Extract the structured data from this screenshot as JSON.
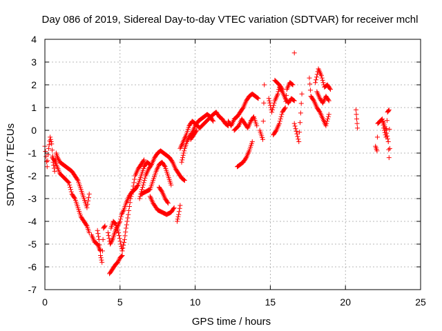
{
  "chart_data": {
    "type": "scatter",
    "title": "Day 086 of 2019, Sidereal Day-to-day VTEC variation (SDTVAR) for receiver mchl",
    "xlabel": "GPS time / hours",
    "ylabel": "SDTVAR / TECUs",
    "xlim": [
      0,
      25
    ],
    "ylim": [
      -7,
      4
    ],
    "x_ticks": [
      0,
      5,
      10,
      15,
      20,
      25
    ],
    "y_ticks": [
      -7,
      -6,
      -5,
      -4,
      -3,
      -2,
      -1,
      0,
      1,
      2,
      3,
      4
    ],
    "grid": true,
    "legend": "none",
    "marker": "plus",
    "colors": {
      "points": "#ff0000",
      "grid": "#a0a0a0",
      "axes": "#000000"
    },
    "segments": [
      [
        [
          0.0,
          -0.7
        ],
        [
          0.15,
          -1.6
        ],
        [
          0.25,
          -0.8
        ],
        [
          0.35,
          -0.3
        ],
        [
          0.45,
          -0.6
        ],
        [
          0.55,
          -1.4
        ],
        [
          0.65,
          -1.8
        ],
        [
          0.75,
          -1.0
        ],
        [
          0.85,
          -1.2
        ],
        [
          1.0,
          -1.4
        ],
        [
          1.2,
          -1.5
        ],
        [
          1.4,
          -1.6
        ],
        [
          1.6,
          -1.7
        ],
        [
          1.8,
          -1.8
        ],
        [
          2.0,
          -2.0
        ],
        [
          2.2,
          -2.2
        ],
        [
          2.4,
          -2.6
        ],
        [
          2.6,
          -3.0
        ],
        [
          2.8,
          -3.4
        ],
        [
          2.95,
          -2.8
        ]
      ],
      [
        [
          0.5,
          -1.2
        ],
        [
          0.7,
          -1.4
        ],
        [
          1.0,
          -1.9
        ],
        [
          1.3,
          -2.1
        ],
        [
          1.6,
          -2.3
        ],
        [
          1.8,
          -2.8
        ],
        [
          2.0,
          -3.0
        ],
        [
          2.2,
          -3.4
        ],
        [
          2.4,
          -3.8
        ],
        [
          2.6,
          -4.0
        ],
        [
          2.8,
          -4.2
        ],
        [
          2.95,
          -4.5
        ]
      ],
      [
        [
          3.1,
          -4.6
        ],
        [
          3.3,
          -4.9
        ],
        [
          3.5,
          -5.0
        ],
        [
          3.7,
          -5.3
        ]
      ],
      [
        [
          3.5,
          -4.4
        ],
        [
          3.6,
          -4.8
        ],
        [
          3.7,
          -5.5
        ],
        [
          3.8,
          -5.8
        ],
        [
          3.9,
          -4.3
        ],
        [
          4.0,
          -4.2
        ]
      ],
      [
        [
          4.2,
          -4.5
        ],
        [
          4.35,
          -5.0
        ],
        [
          4.5,
          -4.8
        ],
        [
          4.6,
          -4.6
        ],
        [
          4.7,
          -4.4
        ],
        [
          4.85,
          -4.2
        ],
        [
          5.0,
          -4.0
        ],
        [
          5.1,
          -3.7
        ],
        [
          5.25,
          -3.5
        ],
        [
          5.4,
          -3.2
        ],
        [
          5.6,
          -2.9
        ],
        [
          5.8,
          -2.7
        ],
        [
          6.0,
          -2.6
        ],
        [
          6.2,
          -2.4
        ],
        [
          6.4,
          -2.0
        ],
        [
          6.6,
          -1.6
        ],
        [
          6.8,
          -1.4
        ],
        [
          7.0,
          -1.5
        ]
      ],
      [
        [
          4.4,
          -4.3
        ],
        [
          4.55,
          -4.0
        ],
        [
          4.7,
          -4.1
        ],
        [
          4.9,
          -4.5
        ],
        [
          5.05,
          -5.0
        ],
        [
          5.15,
          -5.3
        ],
        [
          5.3,
          -4.8
        ],
        [
          5.4,
          -4.3
        ],
        [
          5.55,
          -3.7
        ],
        [
          5.7,
          -3.0
        ],
        [
          5.85,
          -2.6
        ],
        [
          6.0,
          -2.0
        ],
        [
          6.2,
          -1.7
        ],
        [
          6.4,
          -1.5
        ],
        [
          6.6,
          -1.3
        ]
      ],
      [
        [
          4.3,
          -6.3
        ],
        [
          4.5,
          -6.1
        ],
        [
          4.7,
          -5.9
        ],
        [
          4.85,
          -5.8
        ],
        [
          5.0,
          -5.6
        ],
        [
          5.15,
          -5.5
        ]
      ],
      [
        [
          6.3,
          -3.0
        ],
        [
          6.5,
          -2.5
        ],
        [
          6.7,
          -2.0
        ],
        [
          6.9,
          -1.7
        ],
        [
          7.1,
          -1.5
        ],
        [
          7.3,
          -1.2
        ],
        [
          7.5,
          -1.0
        ],
        [
          7.7,
          -0.9
        ],
        [
          7.9,
          -1.0
        ],
        [
          8.1,
          -1.1
        ],
        [
          8.3,
          -1.2
        ],
        [
          8.5,
          -1.4
        ],
        [
          8.7,
          -1.7
        ],
        [
          8.9,
          -1.9
        ],
        [
          9.1,
          -2.1
        ],
        [
          9.3,
          -2.2
        ]
      ],
      [
        [
          6.4,
          -2.8
        ],
        [
          6.7,
          -2.7
        ],
        [
          7.0,
          -2.6
        ],
        [
          7.2,
          -2.2
        ],
        [
          7.4,
          -1.8
        ],
        [
          7.6,
          -1.5
        ],
        [
          7.8,
          -1.4
        ],
        [
          8.0,
          -1.6
        ],
        [
          8.2,
          -2.0
        ],
        [
          8.4,
          -2.4
        ]
      ],
      [
        [
          7.0,
          -2.9
        ],
        [
          7.2,
          -3.2
        ],
        [
          7.5,
          -3.5
        ],
        [
          7.8,
          -3.6
        ],
        [
          8.1,
          -3.7
        ],
        [
          8.4,
          -3.6
        ],
        [
          8.6,
          -3.4
        ]
      ],
      [
        [
          7.6,
          -2.5
        ],
        [
          7.8,
          -2.7
        ],
        [
          8.0,
          -3.0
        ],
        [
          8.2,
          -3.2
        ]
      ],
      [
        [
          8.8,
          -4.0
        ],
        [
          8.9,
          -3.7
        ],
        [
          9.0,
          -3.3
        ]
      ],
      [
        [
          9.1,
          -1.4
        ],
        [
          9.2,
          -1.1
        ],
        [
          9.3,
          -0.8
        ],
        [
          9.45,
          -0.5
        ],
        [
          9.6,
          -0.3
        ],
        [
          9.8,
          -0.1
        ],
        [
          10.0,
          0.2
        ],
        [
          10.2,
          0.4
        ],
        [
          10.4,
          0.5
        ],
        [
          10.6,
          0.6
        ],
        [
          10.8,
          0.7
        ],
        [
          11.0,
          0.6
        ],
        [
          11.2,
          0.4
        ]
      ],
      [
        [
          9.0,
          -0.8
        ],
        [
          9.2,
          -0.5
        ],
        [
          9.4,
          -0.2
        ],
        [
          9.6,
          0.2
        ],
        [
          9.8,
          0.4
        ],
        [
          10.0,
          0.3
        ],
        [
          10.3,
          0.1
        ],
        [
          10.6,
          0.3
        ],
        [
          10.9,
          0.5
        ],
        [
          11.2,
          0.7
        ],
        [
          11.4,
          0.8
        ],
        [
          11.6,
          0.6
        ],
        [
          11.8,
          0.5
        ],
        [
          12.0,
          0.3
        ],
        [
          12.2,
          0.2
        ]
      ],
      [
        [
          9.7,
          -0.4
        ],
        [
          9.9,
          -0.2
        ],
        [
          10.1,
          0.0
        ]
      ],
      [
        [
          12.2,
          0.4
        ],
        [
          12.4,
          0.2
        ],
        [
          12.6,
          0.5
        ],
        [
          12.8,
          0.6
        ],
        [
          13.0,
          0.8
        ],
        [
          13.2,
          1.0
        ],
        [
          13.4,
          1.3
        ],
        [
          13.6,
          1.5
        ],
        [
          13.8,
          1.6
        ],
        [
          14.0,
          1.5
        ],
        [
          14.2,
          1.4
        ]
      ],
      [
        [
          12.8,
          -1.6
        ],
        [
          13.0,
          -1.5
        ],
        [
          13.2,
          -1.4
        ],
        [
          13.4,
          -1.2
        ],
        [
          13.6,
          -0.9
        ],
        [
          13.8,
          -0.5
        ]
      ],
      [
        [
          12.6,
          0.0
        ],
        [
          12.9,
          0.2
        ],
        [
          13.1,
          0.5
        ],
        [
          13.3,
          0.3
        ],
        [
          13.5,
          0.1
        ],
        [
          13.7,
          0.4
        ],
        [
          13.9,
          0.6
        ],
        [
          14.1,
          0.2
        ]
      ],
      [
        [
          14.3,
          0.0
        ],
        [
          14.5,
          -0.4
        ],
        [
          14.6,
          2.0
        ]
      ],
      [
        [
          14.9,
          1.4
        ],
        [
          15.0,
          1.1
        ],
        [
          15.1,
          0.8
        ],
        [
          15.3,
          1.3
        ],
        [
          15.5,
          1.6
        ],
        [
          15.6,
          1.9
        ],
        [
          15.8,
          1.7
        ],
        [
          16.0,
          1.4
        ],
        [
          16.2,
          1.2
        ],
        [
          16.4,
          1.4
        ],
        [
          16.6,
          1.3
        ]
      ],
      [
        [
          15.2,
          -0.2
        ],
        [
          15.4,
          0.0
        ],
        [
          15.6,
          0.3
        ],
        [
          15.8,
          0.8
        ],
        [
          16.0,
          1.0
        ],
        [
          16.1,
          1.8
        ],
        [
          16.3,
          2.1
        ],
        [
          16.5,
          2.0
        ]
      ],
      [
        [
          15.3,
          2.2
        ],
        [
          15.6,
          2.0
        ],
        [
          15.8,
          1.8
        ]
      ],
      [
        [
          16.6,
          3.4
        ],
        [
          16.6,
          0.3
        ],
        [
          16.9,
          -0.5
        ],
        [
          17.1,
          1.6
        ]
      ],
      [
        [
          17.6,
          2.3
        ],
        [
          17.7,
          1.5
        ],
        [
          17.9,
          1.3
        ],
        [
          18.1,
          1.0
        ],
        [
          18.3,
          0.8
        ],
        [
          18.5,
          0.5
        ],
        [
          18.7,
          0.2
        ],
        [
          18.9,
          0.7
        ]
      ],
      [
        [
          18.0,
          2.1
        ],
        [
          18.2,
          2.7
        ],
        [
          18.4,
          2.4
        ],
        [
          18.6,
          1.9
        ],
        [
          18.8,
          2.0
        ],
        [
          19.0,
          1.8
        ]
      ],
      [
        [
          18.1,
          1.7
        ],
        [
          18.3,
          1.4
        ],
        [
          18.5,
          1.2
        ],
        [
          18.7,
          1.5
        ],
        [
          18.9,
          1.3
        ]
      ],
      [
        [
          20.7,
          0.9
        ],
        [
          20.75,
          0.5
        ],
        [
          20.8,
          0.1
        ]
      ],
      [
        [
          22.0,
          -0.7
        ],
        [
          22.1,
          -0.9
        ],
        [
          22.15,
          0.3
        ],
        [
          22.3,
          0.4
        ],
        [
          22.45,
          0.5
        ],
        [
          22.55,
          0.1
        ],
        [
          22.7,
          -0.3
        ],
        [
          22.8,
          0.8
        ],
        [
          22.9,
          0.9
        ],
        [
          22.95,
          -0.8
        ]
      ],
      [
        [
          22.5,
          0.4
        ],
        [
          22.7,
          0.0
        ],
        [
          22.85,
          -0.5
        ],
        [
          22.9,
          -1.2
        ]
      ]
    ]
  }
}
